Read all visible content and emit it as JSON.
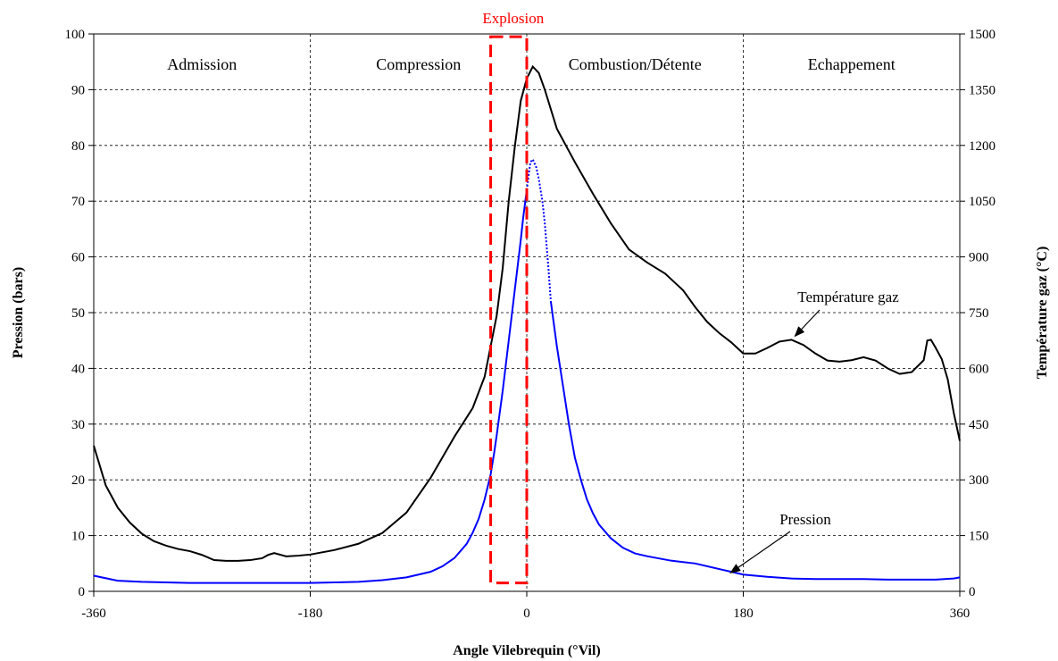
{
  "chart_data": {
    "type": "line",
    "xlabel": "Angle Vilebrequin (°Vil)",
    "ylabel": "Pression (bars)",
    "y2label": "Température gaz (°C)",
    "xlim": [
      -360,
      360
    ],
    "ylim": [
      0,
      100
    ],
    "y2lim": [
      0,
      1500
    ],
    "xticks": [
      "-360",
      "-180",
      "0",
      "180",
      "360"
    ],
    "yticks": [
      "0",
      "10",
      "20",
      "30",
      "40",
      "50",
      "60",
      "70",
      "80",
      "90",
      "100"
    ],
    "y2ticks": [
      "0",
      "150",
      "300",
      "450",
      "600",
      "750",
      "900",
      "1050",
      "1200",
      "1350",
      "1500"
    ],
    "grid": true,
    "phases": [
      {
        "label": "Admission",
        "x": -270
      },
      {
        "label": "Compression",
        "x": -90
      },
      {
        "label": "Combustion/Détente",
        "x": 90
      },
      {
        "label": "Echappement",
        "x": 270
      }
    ],
    "explosion_zone": {
      "label": "Explosion",
      "x_start": -30,
      "x_end": 0,
      "y_start": 1.5,
      "y_end": 99.5
    },
    "series": [
      {
        "name": "Température gaz",
        "axis": "right",
        "color": "#000000",
        "style": "solid",
        "x": [
          -360,
          -350,
          -340,
          -330,
          -320,
          -310,
          -300,
          -290,
          -280,
          -270,
          -260,
          -250,
          -240,
          -230,
          -220,
          -215,
          -210,
          -200,
          -190,
          -180,
          -160,
          -140,
          -120,
          -100,
          -80,
          -60,
          -45,
          -35,
          -25,
          -20,
          -15,
          -10,
          -5,
          0,
          5,
          10,
          15,
          25,
          40,
          55,
          70,
          85,
          100,
          115,
          130,
          140,
          150,
          160,
          170,
          180,
          190,
          200,
          210,
          220,
          230,
          240,
          250,
          260,
          270,
          280,
          290,
          300,
          310,
          320,
          330,
          333,
          336,
          340,
          345,
          350,
          355,
          360
        ],
        "y": [
          392,
          285,
          225,
          185,
          155,
          135,
          123,
          114,
          108,
          98,
          84,
          82,
          82,
          84,
          89,
          98,
          103,
          94,
          96,
          99,
          111,
          128,
          157,
          212,
          305,
          417,
          493,
          578,
          742,
          870,
          1050,
          1195,
          1320,
          1380,
          1412,
          1395,
          1350,
          1245,
          1155,
          1070,
          990,
          920,
          885,
          855,
          810,
          765,
          725,
          695,
          670,
          640,
          640,
          655,
          672,
          677,
          663,
          640,
          621,
          618,
          622,
          630,
          621,
          600,
          585,
          590,
          622,
          675,
          677,
          655,
          625,
          570,
          480,
          405
        ]
      },
      {
        "name": "Pression",
        "axis": "left",
        "color": "#0000ff",
        "style": "solid",
        "x": [
          -360,
          -340,
          -320,
          -300,
          -280,
          -260,
          -240,
          -220,
          -200,
          -180,
          -160,
          -140,
          -120,
          -100,
          -80,
          -70,
          -60,
          -50,
          -45,
          -40,
          -35,
          -30,
          -27,
          -25,
          -20,
          -15,
          -10,
          -5,
          -3,
          0,
          3,
          5,
          8,
          10,
          13,
          15,
          18,
          20,
          25,
          30,
          35,
          40,
          45,
          50,
          55,
          60,
          70,
          80,
          90,
          100,
          120,
          140,
          160,
          170,
          180,
          200,
          220,
          240,
          260,
          280,
          300,
          320,
          340,
          355,
          360
        ],
        "y": [
          2.8,
          1.9,
          1.7,
          1.6,
          1.5,
          1.5,
          1.5,
          1.5,
          1.5,
          1.5,
          1.6,
          1.7,
          2.0,
          2.5,
          3.5,
          4.5,
          6.0,
          8.5,
          10.5,
          13.0,
          16.5,
          21.0,
          25.0,
          28.0,
          36.0,
          45.0,
          54.0,
          63.0,
          67.0,
          72.0,
          77.0,
          77.5,
          76.0,
          74.0,
          70.0,
          66.0,
          58.0,
          52.0,
          44.0,
          37.0,
          30.0,
          24.0,
          20.0,
          16.5,
          14.0,
          12.0,
          9.5,
          7.8,
          6.8,
          6.3,
          5.5,
          5.0,
          4.0,
          3.5,
          3.0,
          2.6,
          2.3,
          2.2,
          2.2,
          2.2,
          2.1,
          2.1,
          2.1,
          2.3,
          2.5
        ]
      }
    ],
    "series_styles": [
      {
        "series": "Pression",
        "dotted_x_range": [
          0,
          20
        ]
      }
    ],
    "annotations": [
      {
        "text": "Température gaz",
        "target_x": 220,
        "target_y2": 677
      },
      {
        "text": "Pression",
        "target_x": 165,
        "target_y": 3.0
      }
    ]
  }
}
